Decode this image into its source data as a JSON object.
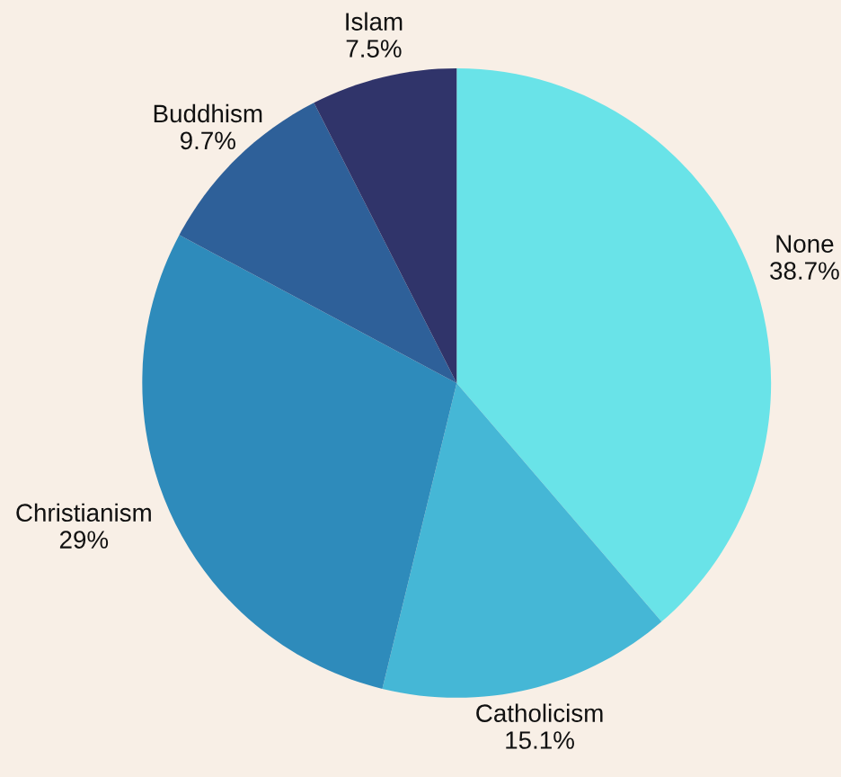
{
  "chart_data": {
    "type": "pie",
    "categories": [
      "None",
      "Catholicism",
      "Christianism",
      "Buddhism",
      "Islam"
    ],
    "values": [
      38.7,
      15.1,
      29,
      9.7,
      7.5
    ],
    "value_labels": [
      "38.7%",
      "15.1%",
      "29%",
      "9.7%",
      "7.5%"
    ],
    "colors": [
      "#69e3e8",
      "#45b7d6",
      "#2e8bbb",
      "#2e6099",
      "#30346a"
    ],
    "legend": false
  }
}
